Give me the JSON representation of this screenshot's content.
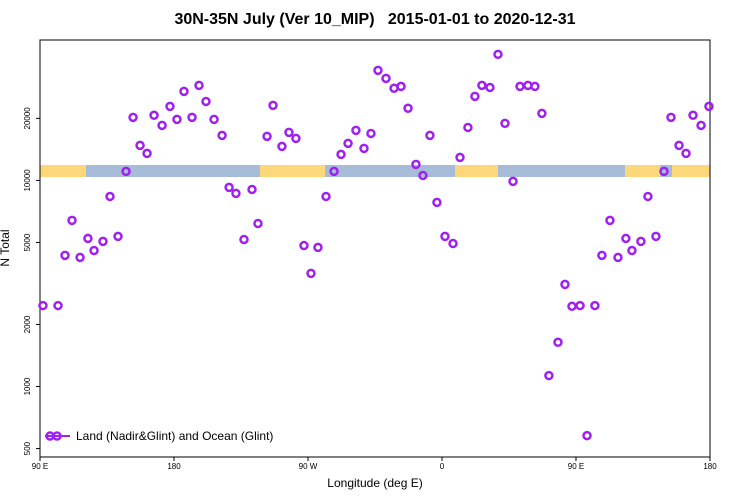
{
  "chart_data": {
    "type": "scatter",
    "title": "30N-35N July (Ver 10_MIP)   2015-01-01 to 2020-12-31",
    "x_label": "Longitude (deg E)",
    "y_label": "N Total",
    "log_y": true,
    "legend": "bottom-left",
    "xlim": [
      90,
      540
    ],
    "ylim": [
      455,
      48000
    ],
    "xticks": [
      {
        "value": 90,
        "label": "90 E"
      },
      180,
      {
        "value": 270,
        "label": "90 W"
      },
      {
        "value": 360,
        "label": "0"
      },
      {
        "value": 450,
        "label": "90 E"
      },
      {
        "value": 540,
        "label": "180"
      }
    ],
    "yticks": [
      500,
      1000,
      2000,
      5000,
      10000,
      20000
    ],
    "series": [
      {
        "name": "Land (Nadir&Glint) and Ocean (Glint)",
        "color": "#a020f0",
        "x": [
          92.0,
          102.1,
          106.8,
          111.5,
          116.9,
          122.2,
          126.3,
          132.3,
          137.0,
          142.4,
          147.8,
          152.5,
          157.2,
          161.9,
          166.6,
          172.0,
          177.3,
          182.0,
          186.7,
          192.1,
          196.8,
          201.5,
          206.9,
          212.3,
          217.0,
          221.6,
          227.0,
          232.4,
          236.4,
          242.5,
          246.5,
          252.5,
          257.2,
          261.9,
          267.3,
          272.0,
          276.7,
          282.1,
          287.5,
          292.2,
          296.9,
          302.2,
          307.6,
          312.3,
          317.0,
          322.4,
          327.8,
          332.5,
          337.2,
          342.5,
          347.2,
          351.9,
          356.6,
          362.0,
          367.4,
          372.1,
          377.4,
          382.1,
          386.8,
          392.2,
          397.6,
          402.3,
          407.7,
          412.4,
          417.7,
          422.4,
          427.1,
          431.8,
          437.9,
          442.6,
          447.3,
          452.7,
          457.4,
          462.7,
          467.4,
          472.8,
          478.2,
          483.5,
          487.6,
          493.6,
          498.3,
          503.7,
          509.1,
          513.8,
          519.2,
          523.9,
          528.6,
          534.0,
          539.3
        ],
        "values": [
          2470,
          2470,
          4330,
          6400,
          4230,
          5230,
          4570,
          5060,
          8360,
          5350,
          11060,
          20230,
          14790,
          13520,
          20700,
          18490,
          22860,
          19770,
          27040,
          20230,
          28910,
          24160,
          19770,
          16530,
          9250,
          8650,
          5170,
          9040,
          6180,
          16360,
          23120,
          14620,
          17100,
          15990,
          4830,
          3540,
          4730,
          8360,
          11060,
          13370,
          15130,
          17490,
          14300,
          16900,
          34200,
          31260,
          27990,
          28580,
          22390,
          11960,
          10570,
          16530,
          7820,
          5350,
          4940,
          12930,
          18070,
          25580,
          28910,
          28250,
          40900,
          18920,
          9890,
          28580,
          28910,
          28580,
          21150,
          1130,
          1640,
          3130,
          2450,
          2470,
          578,
          2470,
          4330,
          6400,
          4230,
          5230,
          4570,
          5060,
          8360,
          5350,
          11060,
          20230,
          14790,
          13520,
          20700,
          18490,
          22860
        ]
      }
    ]
  }
}
